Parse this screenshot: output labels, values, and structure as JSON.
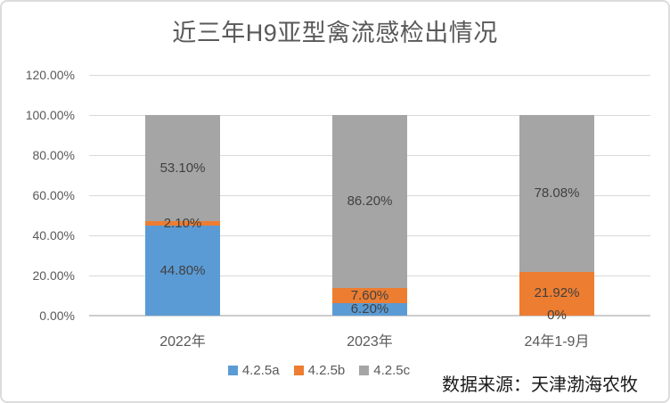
{
  "chart_data": {
    "type": "bar",
    "subtype": "stacked",
    "title": "近三年H9亚型禽流感检出情况",
    "categories": [
      "2022年",
      "2023年",
      "24年1-9月"
    ],
    "series": [
      {
        "name": "4.2.5a",
        "color": "#5B9BD5",
        "values": [
          44.8,
          6.2,
          0
        ],
        "data_labels": [
          "44.80%",
          "6.20%",
          "0%"
        ]
      },
      {
        "name": "4.2.5b",
        "color": "#ED7D31",
        "values": [
          2.1,
          7.6,
          21.92
        ],
        "data_labels": [
          "2.10%",
          "7.60%",
          "21.92%"
        ]
      },
      {
        "name": "4.2.5c",
        "color": "#A5A5A5",
        "values": [
          53.1,
          86.2,
          78.08
        ],
        "data_labels": [
          "53.10%",
          "86.20%",
          "78.08%"
        ]
      }
    ],
    "xlabel": "",
    "ylabel": "",
    "ylim": [
      0,
      120
    ],
    "y_ticks": [
      {
        "value": 0,
        "label": "0.00%"
      },
      {
        "value": 20,
        "label": "20.00%"
      },
      {
        "value": 40,
        "label": "40.00%"
      },
      {
        "value": 60,
        "label": "60.00%"
      },
      {
        "value": 80,
        "label": "80.00%"
      },
      {
        "value": 100,
        "label": "100.00%"
      },
      {
        "value": 120,
        "label": "120.00%"
      }
    ],
    "grid": true,
    "legend_position": "bottom",
    "source_note": "数据来源：天津渤海农牧",
    "colors": {
      "gridline": "#d9d9d9",
      "axis_line": "#cdcdcd",
      "title_text": "#595959",
      "tick_text": "#595959",
      "data_label_text": "#404040",
      "source_text": "#1a1a1a"
    }
  }
}
